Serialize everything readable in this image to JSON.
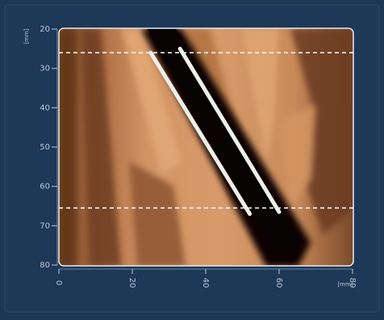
{
  "image_view": {
    "y_axis": {
      "label": "[mm]",
      "lim": [
        20,
        80
      ],
      "ticks": [
        20,
        30,
        40,
        50,
        60,
        70,
        80
      ]
    },
    "x_axis": {
      "label": "[mm]",
      "lim": [
        0,
        80
      ],
      "ticks": [
        0,
        20,
        40,
        60,
        80
      ]
    },
    "dashed_lines_y": [
      26,
      65.5
    ],
    "guide_lines": [
      {
        "x": [
          25,
          52
        ],
        "y": [
          26,
          67
        ]
      },
      {
        "x": [
          33,
          60
        ],
        "y": [
          25,
          66.5
        ]
      }
    ]
  }
}
